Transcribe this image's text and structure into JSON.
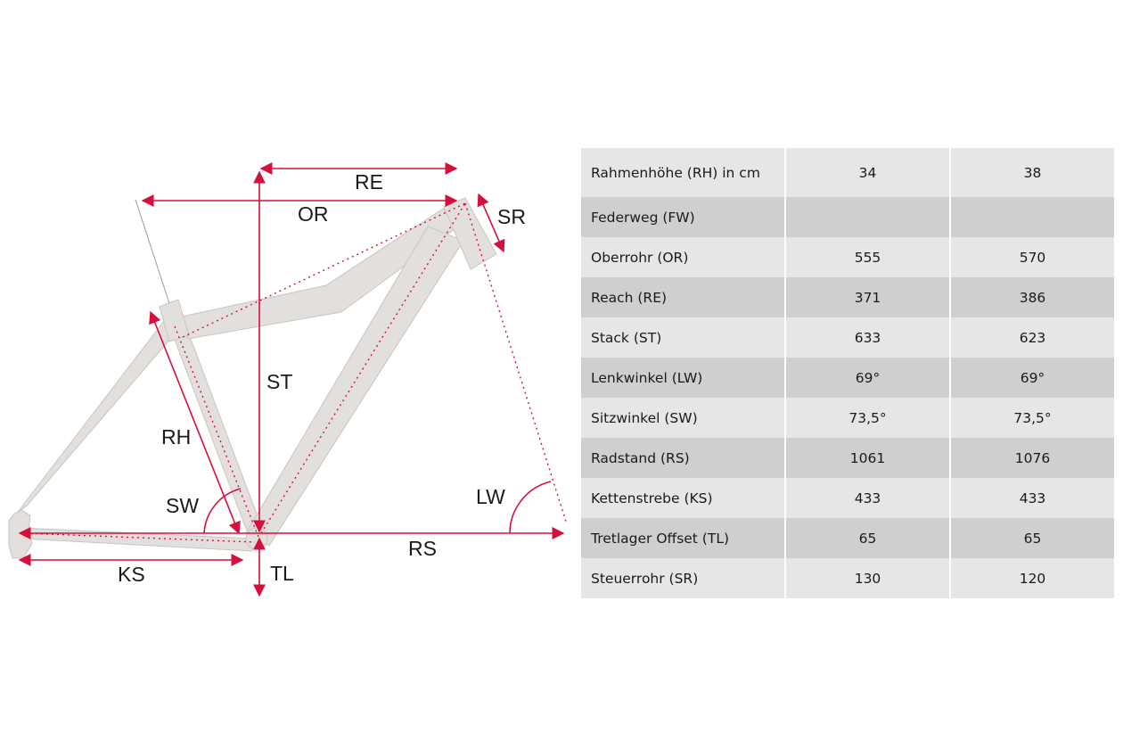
{
  "diagram": {
    "labels": {
      "re": "RE",
      "or": "OR",
      "sr": "SR",
      "st": "ST",
      "rh": "RH",
      "sw": "SW",
      "lw": "LW",
      "rs": "RS",
      "ks": "KS",
      "tl": "TL"
    },
    "colors": {
      "frame": "#e2dfdc",
      "frame_outline": "#c9c5c1",
      "accent": "#d5103c"
    }
  },
  "table": {
    "rows": [
      {
        "label": "Rahmenhöhe (RH) in cm",
        "v1": "34",
        "v2": "38"
      },
      {
        "label": "Federweg (FW)",
        "v1": "",
        "v2": ""
      },
      {
        "label": "Oberrohr (OR)",
        "v1": "555",
        "v2": "570"
      },
      {
        "label": "Reach (RE)",
        "v1": "371",
        "v2": "386"
      },
      {
        "label": "Stack (ST)",
        "v1": "633",
        "v2": "623"
      },
      {
        "label": "Lenkwinkel (LW)",
        "v1": "69°",
        "v2": "69°"
      },
      {
        "label": "Sitzwinkel (SW)",
        "v1": "73,5°",
        "v2": "73,5°"
      },
      {
        "label": "Radstand (RS)",
        "v1": "1061",
        "v2": "1076"
      },
      {
        "label": "Kettenstrebe (KS)",
        "v1": "433",
        "v2": "433"
      },
      {
        "label": "Tretlager Offset (TL)",
        "v1": "65",
        "v2": "65"
      },
      {
        "label": "Steuerrohr (SR)",
        "v1": "130",
        "v2": "120"
      }
    ]
  }
}
